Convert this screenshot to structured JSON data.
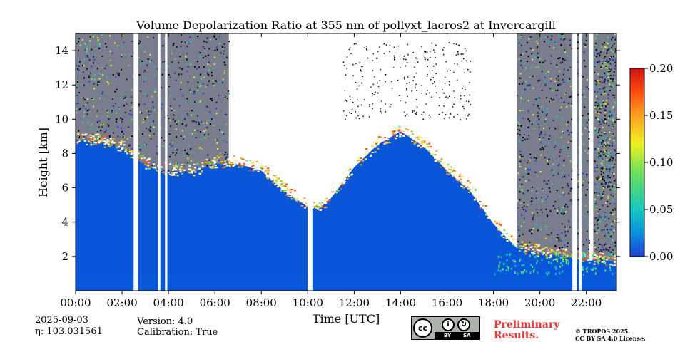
{
  "chart_data": {
    "type": "heatmap",
    "title": "Volume Depolarization Ratio at 355 nm of pollyxt_lacros2 at Invercargill",
    "xlabel": "Time [UTC]",
    "ylabel": "Height [km]",
    "xlim": [
      0,
      23.3
    ],
    "ylim": [
      0,
      15
    ],
    "x_ticks": [
      {
        "value": 0,
        "label": "00:00"
      },
      {
        "value": 2,
        "label": "02:00"
      },
      {
        "value": 4,
        "label": "04:00"
      },
      {
        "value": 6,
        "label": "06:00"
      },
      {
        "value": 8,
        "label": "08:00"
      },
      {
        "value": 10,
        "label": "10:00"
      },
      {
        "value": 12,
        "label": "12:00"
      },
      {
        "value": 14,
        "label": "14:00"
      },
      {
        "value": 16,
        "label": "16:00"
      },
      {
        "value": 18,
        "label": "18:00"
      },
      {
        "value": 20,
        "label": "20:00"
      },
      {
        "value": 22,
        "label": "22:00"
      }
    ],
    "y_ticks": [
      {
        "value": 2,
        "label": "2"
      },
      {
        "value": 4,
        "label": "4"
      },
      {
        "value": 6,
        "label": "6"
      },
      {
        "value": 8,
        "label": "8"
      },
      {
        "value": 10,
        "label": "10"
      },
      {
        "value": 12,
        "label": "12"
      },
      {
        "value": 14,
        "label": "14"
      }
    ],
    "colorbar": {
      "min": 0.0,
      "max": 0.2,
      "ticks": [
        {
          "value": 0.0,
          "label": "0.00"
        },
        {
          "value": 0.05,
          "label": "0.05"
        },
        {
          "value": 0.1,
          "label": "0.10"
        },
        {
          "value": 0.15,
          "label": "0.15"
        },
        {
          "value": 0.2,
          "label": "0.20"
        }
      ],
      "colors": [
        "#1f3fd6",
        "#0a8fe0",
        "#14c8c0",
        "#6fe05a",
        "#f0f020",
        "#ffa020",
        "#ff4a10",
        "#d01010"
      ]
    },
    "boundary_layer_top_km": [
      [
        0,
        8.8
      ],
      [
        1,
        8.7
      ],
      [
        2,
        8.3
      ],
      [
        3,
        7.3
      ],
      [
        4,
        7.0
      ],
      [
        5,
        6.9
      ],
      [
        6,
        7.4
      ],
      [
        7,
        7.4
      ],
      [
        8,
        7.0
      ],
      [
        9,
        5.8
      ],
      [
        10,
        4.9
      ],
      [
        10.5,
        4.8
      ],
      [
        11,
        5.4
      ],
      [
        12,
        7.2
      ],
      [
        13,
        8.5
      ],
      [
        14,
        9.3
      ],
      [
        15,
        8.4
      ],
      [
        16,
        7.0
      ],
      [
        17,
        5.8
      ],
      [
        18,
        3.9
      ],
      [
        19,
        2.5
      ],
      [
        20,
        2.2
      ],
      [
        21,
        2.0
      ],
      [
        22,
        1.8
      ],
      [
        23.3,
        1.7
      ]
    ],
    "gaps_utc": [
      [
        2.5,
        2.7
      ],
      [
        3.55,
        3.65
      ],
      [
        3.85,
        3.95
      ],
      [
        10.0,
        10.2
      ],
      [
        21.4,
        21.6
      ],
      [
        21.7,
        21.75
      ]
    ]
  },
  "footer": {
    "date": "2025-09-03",
    "eta": "η: 103.031561",
    "version": "Version: 4.0",
    "calibration": "Calibration: True",
    "license_by": "BY",
    "license_sa": "SA",
    "preliminary_line1": "Preliminary",
    "preliminary_line2": "Results.",
    "copyright_line1": "© TROPOS 2025.",
    "copyright_line2": "CC BY SA 4.0 License."
  }
}
